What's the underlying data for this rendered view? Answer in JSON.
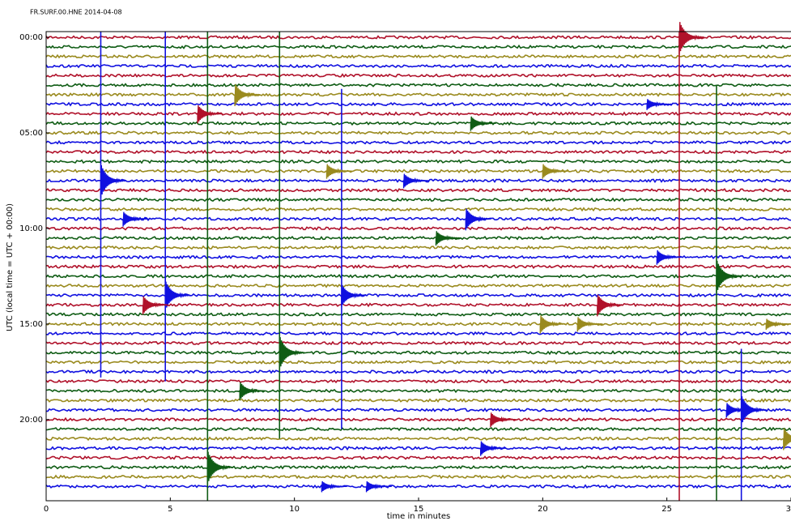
{
  "chart_data": {
    "type": "dayplot",
    "title": "FR.SURF.00.HNE 2014-04-08",
    "x_label": "time in minutes",
    "y_label": "UTC (local time = UTC + 00:00)",
    "xlim": [
      0,
      30
    ],
    "xticks": [
      0,
      5,
      10,
      15,
      20,
      25,
      30
    ],
    "ylim": [
      24.25,
      -0.3
    ],
    "yticks": [
      {
        "value": 0,
        "label": "00:00"
      },
      {
        "value": 5,
        "label": "05:00"
      },
      {
        "value": 10,
        "label": "10:00"
      },
      {
        "value": 15,
        "label": "15:00"
      },
      {
        "value": 20,
        "label": "20:00"
      }
    ],
    "colors": [
      "#b0112a",
      "#0f5c14",
      "#9a8a1e",
      "#1010e0"
    ],
    "events": [
      {
        "hour": 7.5,
        "minute": 2.2,
        "size": 0.9,
        "span": [
          -0.3,
          17.8
        ]
      },
      {
        "hour": 13.5,
        "minute": 4.8,
        "size": 0.8,
        "span": [
          -0.3,
          18.0
        ]
      },
      {
        "hour": 22.5,
        "minute": 6.5,
        "size": 0.9,
        "span": [
          -0.3,
          24.25
        ]
      },
      {
        "hour": 16.5,
        "minute": 9.4,
        "size": 0.9,
        "span": [
          -0.3,
          21.0
        ]
      },
      {
        "hour": 13.5,
        "minute": 11.9,
        "size": 0.6,
        "span": [
          2.7,
          20.5
        ]
      },
      {
        "hour": 0,
        "minute": 25.5,
        "size": 0.9,
        "span": [
          -0.3,
          24.25
        ]
      },
      {
        "hour": 12.5,
        "minute": 27.0,
        "size": 0.9,
        "span": [
          2.5,
          24.25
        ]
      },
      {
        "hour": 19.5,
        "minute": 28.0,
        "size": 0.8,
        "span": [
          16.3,
          24.25
        ]
      },
      {
        "hour": 21,
        "minute": 29.7,
        "size": 0.6
      },
      {
        "hour": 14,
        "minute": 3.9,
        "size": 0.5
      },
      {
        "hour": 14,
        "minute": 22.2,
        "size": 0.6
      },
      {
        "hour": 15,
        "minute": 19.9,
        "size": 0.5
      },
      {
        "hour": 9.5,
        "minute": 16.9,
        "size": 0.6
      },
      {
        "hour": 7.5,
        "minute": 14.4,
        "size": 0.4
      },
      {
        "hour": 7,
        "minute": 11.3,
        "size": 0.4
      },
      {
        "hour": 7,
        "minute": 20.0,
        "size": 0.4
      },
      {
        "hour": 3.5,
        "minute": 24.2,
        "size": 0.3
      },
      {
        "hour": 3,
        "minute": 7.6,
        "size": 0.6
      },
      {
        "hour": 4,
        "minute": 6.1,
        "size": 0.5
      },
      {
        "hour": 4.5,
        "minute": 17.1,
        "size": 0.4
      },
      {
        "hour": 18.5,
        "minute": 7.8,
        "size": 0.5
      },
      {
        "hour": 23.5,
        "minute": 11.1,
        "size": 0.3
      },
      {
        "hour": 23.5,
        "minute": 12.9,
        "size": 0.3
      },
      {
        "hour": 21.5,
        "minute": 17.5,
        "size": 0.4
      },
      {
        "hour": 11.5,
        "minute": 24.6,
        "size": 0.4
      },
      {
        "hour": 15,
        "minute": 29.0,
        "size": 0.3
      },
      {
        "hour": 9.5,
        "minute": 3.1,
        "size": 0.4
      },
      {
        "hour": 10.5,
        "minute": 15.7,
        "size": 0.4
      },
      {
        "hour": 20,
        "minute": 17.9,
        "size": 0.4
      },
      {
        "hour": 15,
        "minute": 21.4,
        "size": 0.4
      },
      {
        "hour": 19.5,
        "minute": 27.4,
        "size": 0.4
      }
    ]
  }
}
